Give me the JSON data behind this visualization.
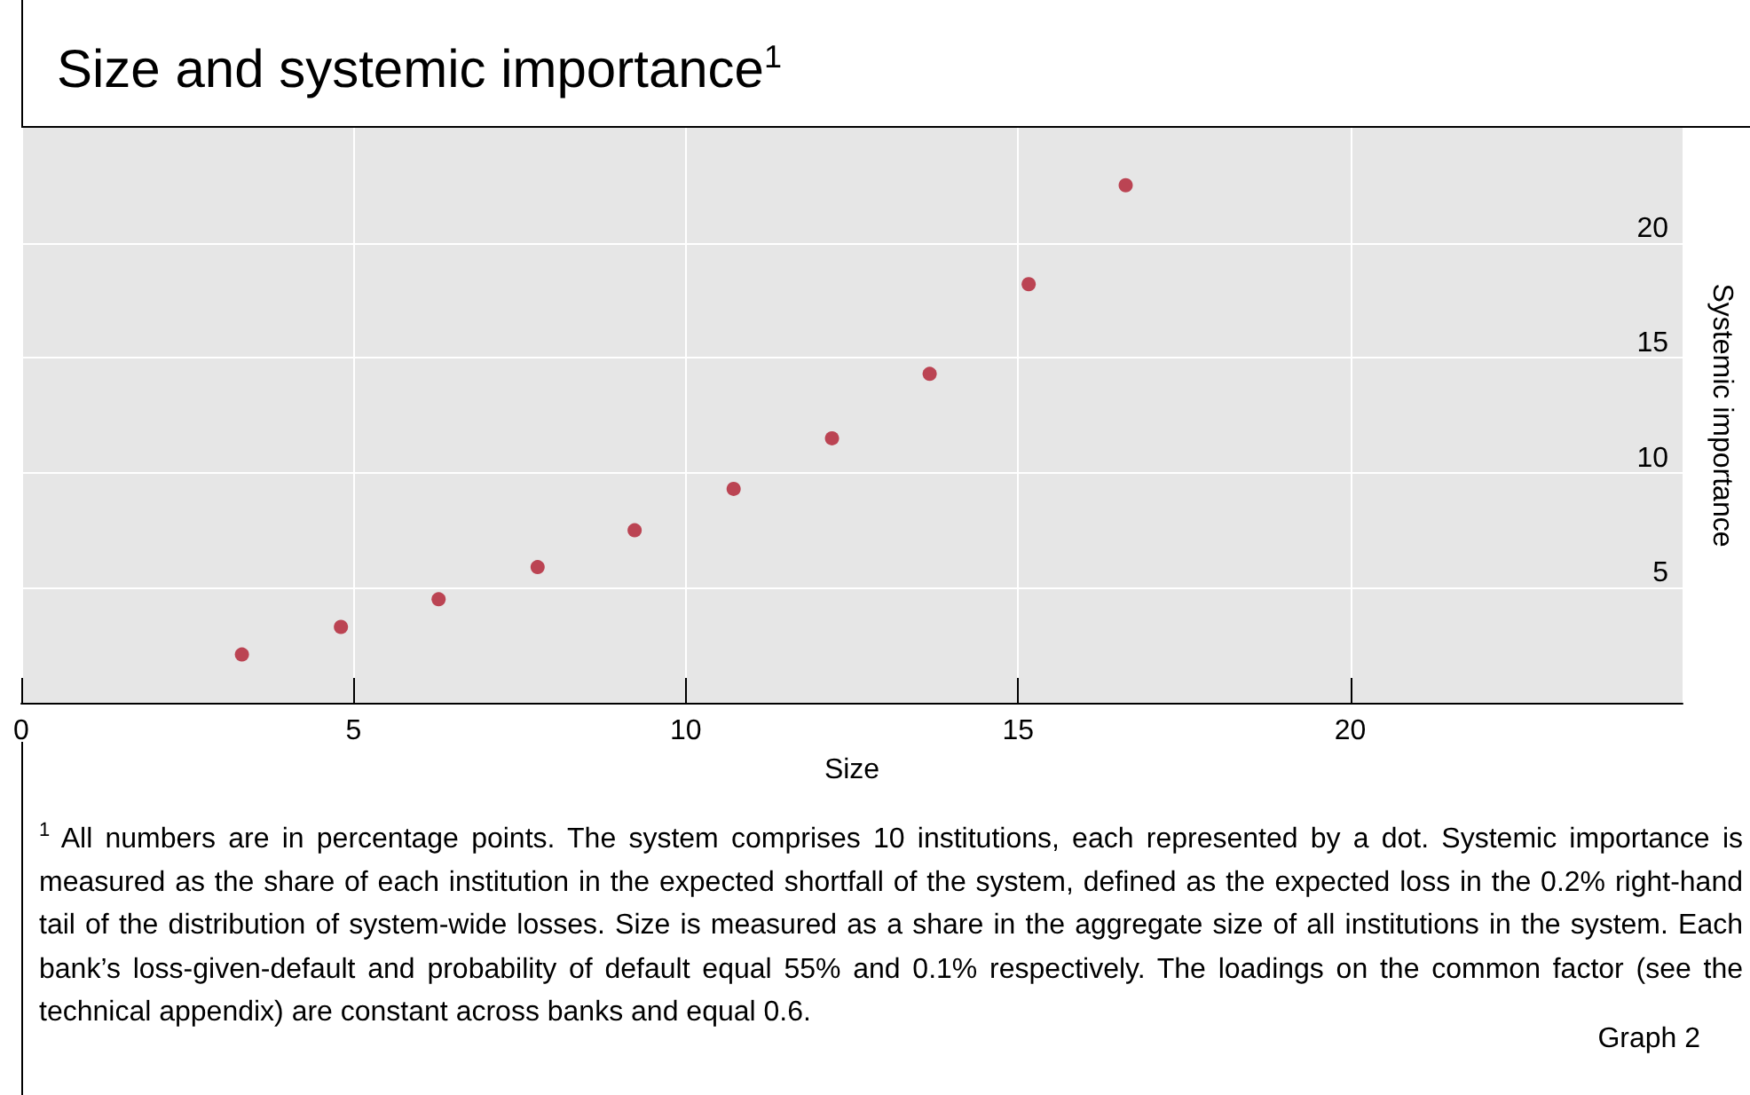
{
  "chart_data": {
    "type": "scatter",
    "title": "Size and systemic importance$^{1}$",
    "xlabel": "Size",
    "ylabel": "Systemic importance",
    "x": [
      3.32,
      4.81,
      6.28,
      7.77,
      9.23,
      10.72,
      12.2,
      13.67,
      15.16,
      16.62
    ],
    "series": [
      {
        "color": "#b01c2e",
        "values": [
          2.1,
          3.3,
          4.5,
          5.9,
          7.5,
          9.3,
          11.5,
          14.3,
          18.2,
          22.5
        ]
      }
    ],
    "xlim": [
      0,
      25
    ],
    "xticks": [
      0,
      5,
      10,
      15,
      20
    ],
    "ylim": [
      0,
      25
    ],
    "yticks": [
      5,
      10,
      15,
      20
    ],
    "grid": true,
    "marker": "circle",
    "annotations": [
      "$^{1}$  All numbers are in percentage points. The system comprises 10 institutions, each represented by a dot. Systemic importance is measured as the share of each institution in the expected shortfall of the system, defined as the expected loss in the 0.2% right-hand tail of the distribution of system-wide losses. Size is measured as a share in the aggregate size of all institutions in the system. Each bank’s loss-given-default and probability of default equal 55% and 0.1% respectively. The loadings on the common factor (see the technical appendix) are constant across banks and equal 0.6.",
      "Graph 2"
    ]
  }
}
